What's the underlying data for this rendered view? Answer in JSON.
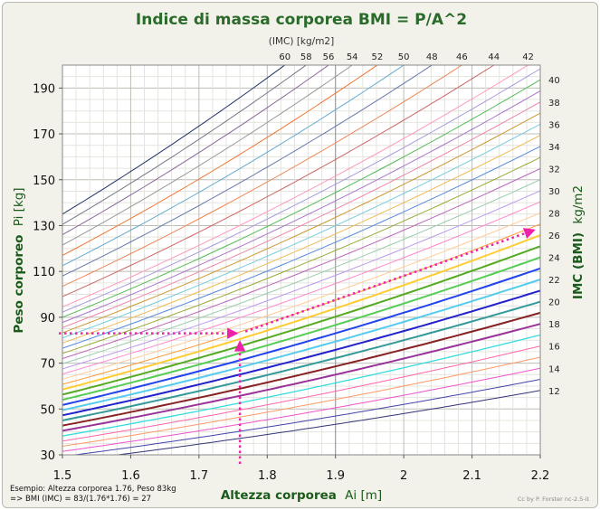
{
  "chart_data": {
    "type": "line",
    "title": "Indice di massa corporea BMI = P/A^2",
    "xlabel": {
      "main": "Altezza corporea",
      "symbol": "Ai [m]"
    },
    "ylabel": {
      "main": "Peso corporeo",
      "symbol": "Pi [kg]"
    },
    "y2label": {
      "main": "IMC (BMI)",
      "unit": "kg/m2"
    },
    "top_axis_label": "(IMC) [kg/m2]",
    "xlim": [
      1.5,
      2.2
    ],
    "ylim": [
      30,
      200
    ],
    "x_ticks": [
      "1.5",
      "1.6",
      "1.7",
      "1.8",
      "1.9",
      "2",
      "2.1",
      "2.2"
    ],
    "y_ticks": [
      "30",
      "50",
      "70",
      "90",
      "110",
      "130",
      "150",
      "170",
      "190"
    ],
    "grid": true,
    "series": [
      {
        "bmi": 12,
        "color": "#333377",
        "width": 1
      },
      {
        "bmi": 13,
        "color": "#4444aa",
        "width": 1
      },
      {
        "bmi": 14,
        "color": "#ee55cc",
        "width": 1
      },
      {
        "bmi": 15,
        "color": "#ff9966",
        "width": 1
      },
      {
        "bmi": 16,
        "color": "#ff66aa",
        "width": 1
      },
      {
        "bmi": 17,
        "color": "#33dddd",
        "width": 1.3
      },
      {
        "bmi": 18,
        "color": "#993399",
        "width": 2
      },
      {
        "bmi": 19,
        "color": "#882222",
        "width": 2
      },
      {
        "bmi": 20,
        "color": "#339999",
        "width": 2
      },
      {
        "bmi": 21,
        "color": "#2222cc",
        "width": 2
      },
      {
        "bmi": 22,
        "color": "#55ccee",
        "width": 2
      },
      {
        "bmi": 23,
        "color": "#2244ee",
        "width": 2
      },
      {
        "bmi": 24,
        "color": "#55cc55",
        "width": 2
      },
      {
        "bmi": 25,
        "color": "#55aa22",
        "width": 2
      },
      {
        "bmi": 26,
        "color": "#ffcc33",
        "width": 2
      },
      {
        "bmi": 27,
        "color": "#ff9933",
        "width": 1
      },
      {
        "bmi": 28,
        "color": "#ffcc99",
        "width": 1
      },
      {
        "bmi": 29,
        "color": "#ff88cc",
        "width": 1
      },
      {
        "bmi": 30,
        "color": "#bb99ee",
        "width": 1
      },
      {
        "bmi": 31,
        "color": "#99ccaa",
        "width": 1
      },
      {
        "bmi": 32,
        "color": "#bb66bb",
        "width": 1
      },
      {
        "bmi": 33,
        "color": "#99aa33",
        "width": 1
      },
      {
        "bmi": 34,
        "color": "#5588dd",
        "width": 1
      },
      {
        "bmi": 35,
        "color": "#eebb55",
        "width": 1
      },
      {
        "bmi": 36,
        "color": "#77ccdd",
        "width": 1
      },
      {
        "bmi": 37,
        "color": "#cc9933",
        "width": 1
      },
      {
        "bmi": 38,
        "color": "#ee88aa",
        "width": 1
      },
      {
        "bmi": 39,
        "color": "#aa77cc",
        "width": 1
      },
      {
        "bmi": 40,
        "color": "#55bb55",
        "width": 1
      },
      {
        "bmi": 41,
        "color": "#aa99dd",
        "width": 1
      },
      {
        "bmi": 42,
        "color": "#ff99bb",
        "width": 1
      },
      {
        "bmi": 44,
        "color": "#cc6666",
        "width": 1
      },
      {
        "bmi": 46,
        "color": "#ee8855",
        "width": 1
      },
      {
        "bmi": 48,
        "color": "#6677aa",
        "width": 1
      },
      {
        "bmi": 50,
        "color": "#66aacc",
        "width": 1
      },
      {
        "bmi": 52,
        "color": "#ee7733",
        "width": 1
      },
      {
        "bmi": 54,
        "color": "#999999",
        "width": 1
      },
      {
        "bmi": 56,
        "color": "#886699",
        "width": 1
      },
      {
        "bmi": 58,
        "color": "#777788",
        "width": 1
      },
      {
        "bmi": 60,
        "color": "#223366",
        "width": 1
      }
    ],
    "right_labels": [
      "12",
      "14",
      "16",
      "18",
      "20",
      "22",
      "24",
      "26",
      "28",
      "30",
      "32",
      "34",
      "36",
      "38",
      "40"
    ],
    "top_labels": [
      "42",
      "44",
      "46",
      "48",
      "50",
      "52",
      "54",
      "56",
      "58",
      "60"
    ],
    "example": {
      "height": 1.76,
      "weight": 83,
      "bmi": 27,
      "color": "#ee22aa",
      "line1": "Esempio: Altezza corporea 1.76, Peso 83kg",
      "line2": "=> BMI (IMC) = 83/(1.76*1.76) = 27"
    },
    "credit": "Cc by P. Forster nc-2.5-it"
  },
  "colors": {
    "title": "#2a6a2a",
    "axis_label": "#1a5a1a",
    "panel": "#f3f2ea",
    "grid": "#c8c8c0"
  }
}
